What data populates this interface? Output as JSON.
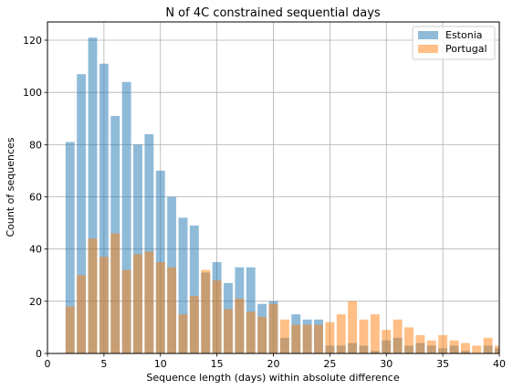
{
  "chart_data": {
    "type": "bar",
    "title": "N of 4C constrained sequential days",
    "xlabel": "Sequence length (days) within absolute difference",
    "ylabel": "Count of sequences",
    "xlim": [
      0,
      40
    ],
    "ylim": [
      0,
      127
    ],
    "xticks": [
      0,
      5,
      10,
      15,
      20,
      25,
      30,
      35,
      40
    ],
    "yticks": [
      0,
      20,
      40,
      60,
      80,
      100,
      120
    ],
    "grid": true,
    "legend_position": "top-right",
    "x": [
      2,
      3,
      4,
      5,
      6,
      7,
      8,
      9,
      10,
      11,
      12,
      13,
      14,
      15,
      16,
      17,
      18,
      19,
      20,
      21,
      22,
      23,
      24,
      25,
      26,
      27,
      28,
      29,
      30,
      31,
      32,
      33,
      34,
      35,
      36,
      37,
      38,
      39,
      40
    ],
    "series": [
      {
        "name": "Estonia",
        "color": "#1f77b4",
        "values": [
          81,
          107,
          121,
          111,
          91,
          104,
          80,
          84,
          70,
          60,
          52,
          49,
          31,
          35,
          27,
          33,
          33,
          19,
          20,
          6,
          15,
          13,
          13,
          3,
          3,
          4,
          3,
          1,
          5,
          6,
          3,
          4,
          3,
          2,
          3,
          1,
          0,
          3,
          2
        ]
      },
      {
        "name": "Portugal",
        "color": "#ff7f0e",
        "values": [
          18,
          30,
          44,
          37,
          46,
          32,
          38,
          39,
          35,
          33,
          15,
          22,
          32,
          28,
          17,
          21,
          16,
          14,
          19,
          13,
          11,
          11,
          11,
          12,
          15,
          20,
          13,
          15,
          9,
          13,
          10,
          7,
          5,
          7,
          5,
          4,
          3,
          6,
          3
        ]
      }
    ]
  }
}
